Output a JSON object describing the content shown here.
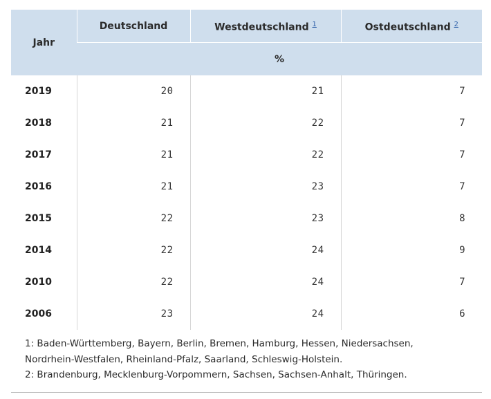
{
  "table": {
    "header": {
      "jahr": "Jahr",
      "deutschland": "Deutschland",
      "west": "Westdeutschland",
      "west_note": "1",
      "ost": "Ostdeutschland",
      "ost_note": "2",
      "unit": "%"
    },
    "rows": [
      {
        "year": "2019",
        "de": "20",
        "west": "21",
        "ost": "7"
      },
      {
        "year": "2018",
        "de": "21",
        "west": "22",
        "ost": "7"
      },
      {
        "year": "2017",
        "de": "21",
        "west": "22",
        "ost": "7"
      },
      {
        "year": "2016",
        "de": "21",
        "west": "23",
        "ost": "7"
      },
      {
        "year": "2015",
        "de": "22",
        "west": "23",
        "ost": "8"
      },
      {
        "year": "2014",
        "de": "22",
        "west": "24",
        "ost": "9"
      },
      {
        "year": "2010",
        "de": "22",
        "west": "24",
        "ost": "7"
      },
      {
        "year": "2006",
        "de": "23",
        "west": "24",
        "ost": "6"
      }
    ]
  },
  "footnotes": {
    "note1_line1": "1: Baden-Württemberg, Bayern, Berlin, Bremen, Hamburg, Hessen, Niedersachsen,",
    "note1_line2": "Nordrhein-Westfalen, Rheinland-Pfalz, Saarland, Schleswig-Holstein.",
    "note2": "2: Brandenburg, Mecklenburg-Vorpommern, Sachsen, Sachsen-Anhalt, Thüringen."
  },
  "colors": {
    "header_bg": "#cfdeed",
    "link": "#2d5fa8"
  }
}
